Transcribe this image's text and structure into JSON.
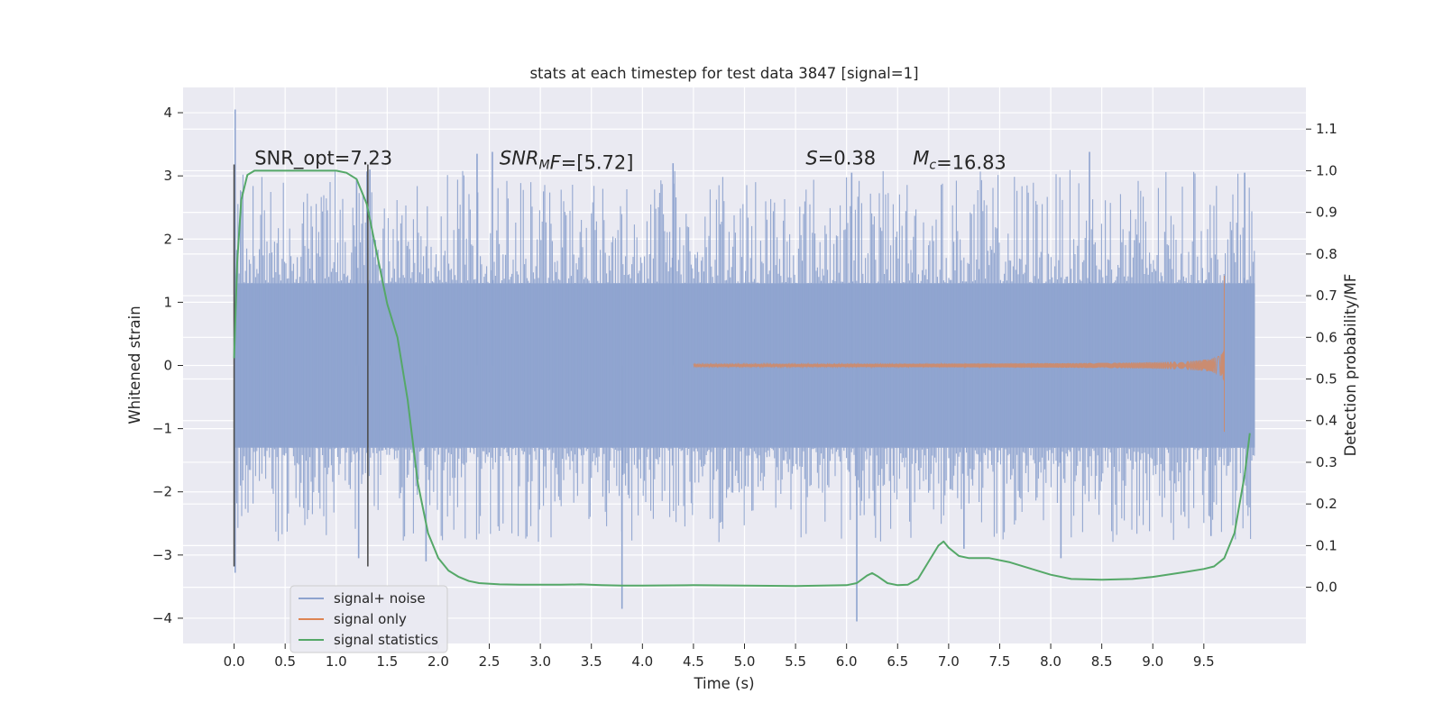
{
  "chart_data": {
    "type": "line",
    "title": "stats at each timestep for test data 3847 [signal=1]",
    "xlabel": "Time (s)",
    "ylabel": "Whitened strain",
    "ylabel_right": "Detection probability/MF",
    "xlim": [
      -0.5,
      10.5
    ],
    "ylim": [
      -4.4,
      4.4
    ],
    "ylim_right": [
      -0.135,
      1.2
    ],
    "x_ticks": [
      "0.0",
      "0.5",
      "1.0",
      "1.5",
      "2.0",
      "2.5",
      "3.0",
      "3.5",
      "4.0",
      "4.5",
      "5.0",
      "5.5",
      "6.0",
      "6.5",
      "7.0",
      "7.5",
      "8.0",
      "8.5",
      "9.0",
      "9.5"
    ],
    "y_ticks": [
      "4",
      "3",
      "2",
      "1",
      "0",
      "−1",
      "−2",
      "−3",
      "−4"
    ],
    "y_ticks_right": [
      "1.1",
      "1.0",
      "0.9",
      "0.8",
      "0.7",
      "0.6",
      "0.5",
      "0.4",
      "0.3",
      "0.2",
      "0.1",
      "0.0"
    ],
    "annotations": [
      {
        "parts": [
          {
            "t": "SNR_opt=7.23"
          }
        ]
      },
      {
        "parts": [
          {
            "t": "SNR",
            "i": true
          },
          {
            "t": "M",
            "i": true,
            "sub": true
          },
          {
            "t": "F",
            "i": true
          },
          {
            "t": "=[5.72]"
          }
        ]
      },
      {
        "parts": [
          {
            "t": "S",
            "i": true
          },
          {
            "t": "=0.38"
          }
        ]
      },
      {
        "parts": [
          {
            "t": "M",
            "i": true
          },
          {
            "t": "c",
            "i": true,
            "sub": true
          },
          {
            "t": "=16.83"
          }
        ]
      }
    ],
    "markers_x": [
      0.0,
      1.31
    ],
    "noise_spikes": [
      {
        "x": 0.01,
        "y": 4.05
      },
      {
        "x": 0.01,
        "y": -3.28
      },
      {
        "x": 1.2,
        "y": 2.95
      },
      {
        "x": 1.33,
        "y": 3.1
      },
      {
        "x": 1.22,
        "y": -3.05
      },
      {
        "x": 1.88,
        "y": -3.1
      },
      {
        "x": 2.38,
        "y": 3.35
      },
      {
        "x": 2.53,
        "y": 3.38
      },
      {
        "x": 3.8,
        "y": -3.85
      },
      {
        "x": 4.3,
        "y": 3.2
      },
      {
        "x": 6.1,
        "y": -4.05
      },
      {
        "x": 6.05,
        "y": 3.05
      },
      {
        "x": 7.15,
        "y": -2.9
      },
      {
        "x": 8.38,
        "y": 3.38
      },
      {
        "x": 8.1,
        "y": -3.05
      },
      {
        "x": 9.57,
        "y": -2.7
      },
      {
        "x": 9.9,
        "y": 3.05
      }
    ],
    "series": [
      {
        "name": "signal+ noise",
        "color": "#8ea3cf",
        "x_range": [
          0.0,
          10.0
        ],
        "envelope": 1.3
      },
      {
        "name": "signal only",
        "color": "#dd8452",
        "chirp_end": 9.7,
        "peak": 1.42,
        "trough": -1.05
      },
      {
        "name": "signal statistics",
        "color": "#55a868",
        "axis": "right",
        "x": [
          0.0,
          0.03,
          0.07,
          0.13,
          0.2,
          0.3,
          0.5,
          0.8,
          1.0,
          1.1,
          1.2,
          1.3,
          1.4,
          1.5,
          1.6,
          1.7,
          1.8,
          1.9,
          2.0,
          2.1,
          2.2,
          2.3,
          2.4,
          2.6,
          2.8,
          3.0,
          3.2,
          3.4,
          3.6,
          3.8,
          4.0,
          4.5,
          5.0,
          5.5,
          6.0,
          6.1,
          6.2,
          6.25,
          6.3,
          6.4,
          6.5,
          6.6,
          6.7,
          6.8,
          6.9,
          6.95,
          7.0,
          7.1,
          7.2,
          7.4,
          7.6,
          7.8,
          8.0,
          8.2,
          8.5,
          8.8,
          9.0,
          9.3,
          9.5,
          9.6,
          9.7,
          9.8,
          9.9,
          9.95
        ],
        "values": [
          0.55,
          0.78,
          0.93,
          0.99,
          1.0,
          1.0,
          1.0,
          1.0,
          1.0,
          0.995,
          0.98,
          0.92,
          0.8,
          0.68,
          0.6,
          0.45,
          0.25,
          0.13,
          0.07,
          0.04,
          0.025,
          0.015,
          0.01,
          0.007,
          0.006,
          0.006,
          0.006,
          0.007,
          0.005,
          0.004,
          0.004,
          0.005,
          0.004,
          0.003,
          0.005,
          0.01,
          0.028,
          0.034,
          0.027,
          0.01,
          0.005,
          0.006,
          0.02,
          0.06,
          0.1,
          0.11,
          0.095,
          0.075,
          0.07,
          0.07,
          0.06,
          0.045,
          0.03,
          0.02,
          0.018,
          0.02,
          0.025,
          0.036,
          0.044,
          0.05,
          0.07,
          0.13,
          0.27,
          0.37
        ]
      }
    ],
    "legend_position": "lower-left",
    "grid": true,
    "colors": {
      "plot_bg": "#eaeaf2",
      "grid": "#ffffff"
    }
  }
}
